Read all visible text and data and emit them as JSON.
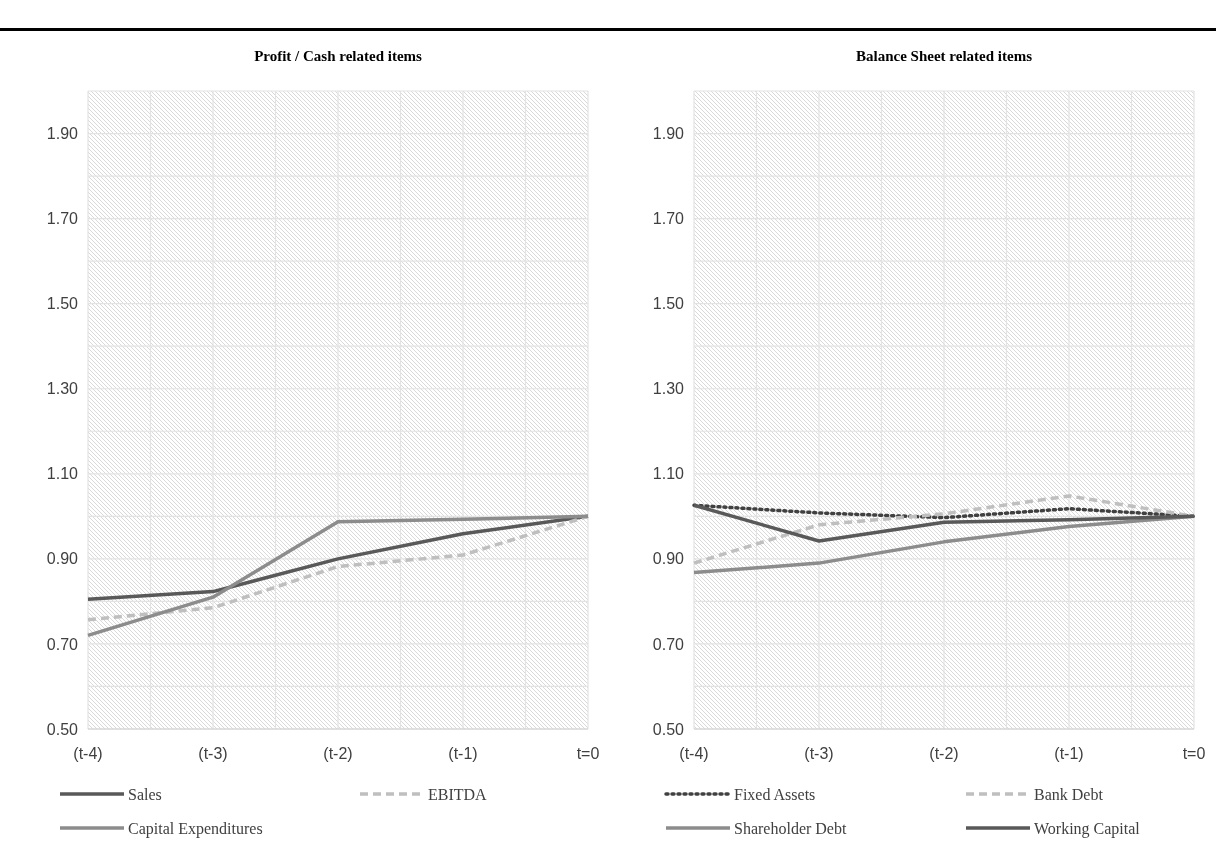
{
  "chart_data": [
    {
      "type": "line",
      "title": "Profit / Cash related items",
      "categories": [
        "(t-4)",
        "(t-3)",
        "(t-2)",
        "(t-1)",
        "t=0"
      ],
      "ylim": [
        0.5,
        2.0
      ],
      "yticks": [
        {
          "value": 0.5,
          "label": "0.50"
        },
        {
          "value": 0.6,
          "label": null
        },
        {
          "value": 0.7,
          "label": "0.70"
        },
        {
          "value": 0.8,
          "label": null
        },
        {
          "value": 0.9,
          "label": "0.90"
        },
        {
          "value": 1.0,
          "label": null
        },
        {
          "value": 1.1,
          "label": "1.10"
        },
        {
          "value": 1.2,
          "label": null
        },
        {
          "value": 1.3,
          "label": "1.30"
        },
        {
          "value": 1.4,
          "label": null
        },
        {
          "value": 1.5,
          "label": "1.50"
        },
        {
          "value": 1.6,
          "label": null
        },
        {
          "value": 1.7,
          "label": "1.70"
        },
        {
          "value": 1.8,
          "label": null
        },
        {
          "value": 1.9,
          "label": "1.90"
        },
        {
          "value": 2.0,
          "label": null
        }
      ],
      "grid": true,
      "legend": "bottom",
      "series": [
        {
          "name": "Sales",
          "color": "#595959",
          "line_style": "solid",
          "values": [
            0.805,
            0.823,
            0.9,
            0.959,
            1.0
          ]
        },
        {
          "name": "EBITDA",
          "color": "#bfbfbf",
          "line_style": "dashed",
          "values": [
            0.757,
            0.785,
            0.882,
            0.909,
            1.0
          ]
        },
        {
          "name": "Capital Expenditures",
          "color": "#8c8c8c",
          "line_style": "solid",
          "values": [
            0.72,
            0.81,
            0.987,
            0.993,
            1.0
          ]
        }
      ]
    },
    {
      "type": "line",
      "title": "Balance Sheet related items",
      "categories": [
        "(t-4)",
        "(t-3)",
        "(t-2)",
        "(t-1)",
        "t=0"
      ],
      "ylim": [
        0.5,
        2.0
      ],
      "yticks": [
        {
          "value": 0.5,
          "label": "0.50"
        },
        {
          "value": 0.6,
          "label": null
        },
        {
          "value": 0.7,
          "label": "0.70"
        },
        {
          "value": 0.8,
          "label": null
        },
        {
          "value": 0.9,
          "label": "0.90"
        },
        {
          "value": 1.0,
          "label": null
        },
        {
          "value": 1.1,
          "label": "1.10"
        },
        {
          "value": 1.2,
          "label": null
        },
        {
          "value": 1.3,
          "label": "1.30"
        },
        {
          "value": 1.4,
          "label": null
        },
        {
          "value": 1.5,
          "label": "1.50"
        },
        {
          "value": 1.6,
          "label": null
        },
        {
          "value": 1.7,
          "label": "1.70"
        },
        {
          "value": 1.8,
          "label": null
        },
        {
          "value": 1.9,
          "label": "1.90"
        },
        {
          "value": 2.0,
          "label": null
        }
      ],
      "grid": true,
      "legend": "bottom",
      "series": [
        {
          "name": "Fixed Assets",
          "color": "#404040",
          "line_style": "dotted",
          "values": [
            1.026,
            1.008,
            0.997,
            1.018,
            1.0
          ]
        },
        {
          "name": "Bank Debt",
          "color": "#bfbfbf",
          "line_style": "dashed",
          "values": [
            0.89,
            0.98,
            1.006,
            1.048,
            1.0
          ]
        },
        {
          "name": "Shareholder Debt",
          "color": "#8c8c8c",
          "line_style": "solid",
          "values": [
            0.868,
            0.89,
            0.94,
            0.976,
            1.0
          ]
        },
        {
          "name": "Working Capital",
          "color": "#595959",
          "line_style": "solid",
          "values": [
            1.026,
            0.942,
            0.986,
            0.992,
            1.0
          ]
        }
      ]
    }
  ]
}
